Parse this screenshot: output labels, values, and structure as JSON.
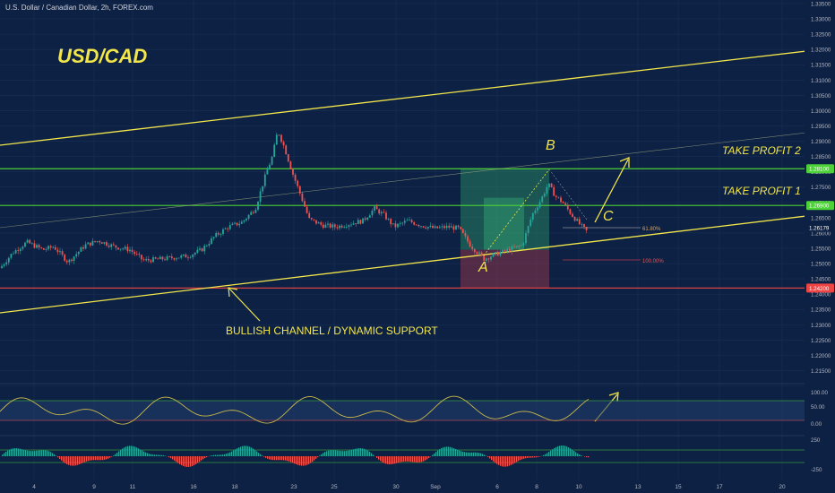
{
  "symbol_title": "U.S. Dollar / Canadian Dollar, 2h, FOREX.com",
  "annotations": {
    "pair": "USD/CAD",
    "tp2": "TAKE PROFIT 2",
    "tp1": "TAKE PROFIT 1",
    "channel": "BULLISH CHANNEL / DYNAMIC SUPPORT",
    "point_a": "A",
    "point_b": "B",
    "point_c": "C",
    "fib_618": "61.80%",
    "fib_100": "100.00%"
  },
  "colors": {
    "background": "#0d2145",
    "candle_up": "#26a69a",
    "candle_down": "#ef5350",
    "channel": "#f2e64a",
    "target": "#4cd137",
    "stop": "#ef4444",
    "oscillator": "#c9b84a"
  },
  "chart_data": {
    "type": "candlestick",
    "x_ticks": [
      "4",
      "9",
      "11",
      "16",
      "18",
      "23",
      "25",
      "30",
      "Sep",
      "6",
      "8",
      "10",
      "13",
      "15",
      "17",
      "20"
    ],
    "y_ticks": [
      "1.33500",
      "1.33000",
      "1.32500",
      "1.32000",
      "1.31500",
      "1.31000",
      "1.30500",
      "1.30000",
      "1.29500",
      "1.29000",
      "1.28500",
      "1.28000",
      "1.27500",
      "1.27000",
      "1.26500",
      "1.26000",
      "1.25500",
      "1.25000",
      "1.24500",
      "1.24000",
      "1.23500",
      "1.23000",
      "1.22500",
      "1.22000",
      "1.21500",
      "1.21000"
    ],
    "ylim": [
      1.208,
      1.336
    ],
    "price_path": [
      [
        0,
        1.2485
      ],
      [
        14,
        1.2535
      ],
      [
        30,
        1.257
      ],
      [
        48,
        1.2545
      ],
      [
        60,
        1.2555
      ],
      [
        76,
        1.2505
      ],
      [
        95,
        1.256
      ],
      [
        110,
        1.2575
      ],
      [
        128,
        1.2555
      ],
      [
        145,
        1.2545
      ],
      [
        160,
        1.251
      ],
      [
        180,
        1.2515
      ],
      [
        210,
        1.2525
      ],
      [
        225,
        1.2545
      ],
      [
        240,
        1.259
      ],
      [
        255,
        1.262
      ],
      [
        270,
        1.2635
      ],
      [
        285,
        1.268
      ],
      [
        297,
        1.2795
      ],
      [
        304,
        1.285
      ],
      [
        310,
        1.2935
      ],
      [
        318,
        1.2875
      ],
      [
        326,
        1.28
      ],
      [
        336,
        1.272
      ],
      [
        345,
        1.2645
      ],
      [
        360,
        1.2625
      ],
      [
        375,
        1.262
      ],
      [
        390,
        1.263
      ],
      [
        405,
        1.264
      ],
      [
        418,
        1.268
      ],
      [
        428,
        1.266
      ],
      [
        440,
        1.262
      ],
      [
        455,
        1.264
      ],
      [
        470,
        1.2625
      ],
      [
        485,
        1.2615
      ],
      [
        500,
        1.262
      ],
      [
        512,
        1.2615
      ],
      [
        525,
        1.256
      ],
      [
        540,
        1.2515
      ],
      [
        553,
        1.253
      ],
      [
        568,
        1.2545
      ],
      [
        583,
        1.256
      ],
      [
        594,
        1.266
      ],
      [
        604,
        1.271
      ],
      [
        612,
        1.276
      ],
      [
        620,
        1.272
      ],
      [
        628,
        1.27
      ],
      [
        638,
        1.266
      ],
      [
        648,
        1.2625
      ],
      [
        655,
        1.2605
      ]
    ],
    "levels": {
      "take_profit_2": "1.28100",
      "take_profit_1": "1.26900",
      "current": "1.26179",
      "stop": "1.24200"
    },
    "oscillator_ticks": [
      "100.00",
      "50.00",
      "0.00"
    ],
    "histogram_ticks": [
      "250",
      "-250"
    ]
  }
}
